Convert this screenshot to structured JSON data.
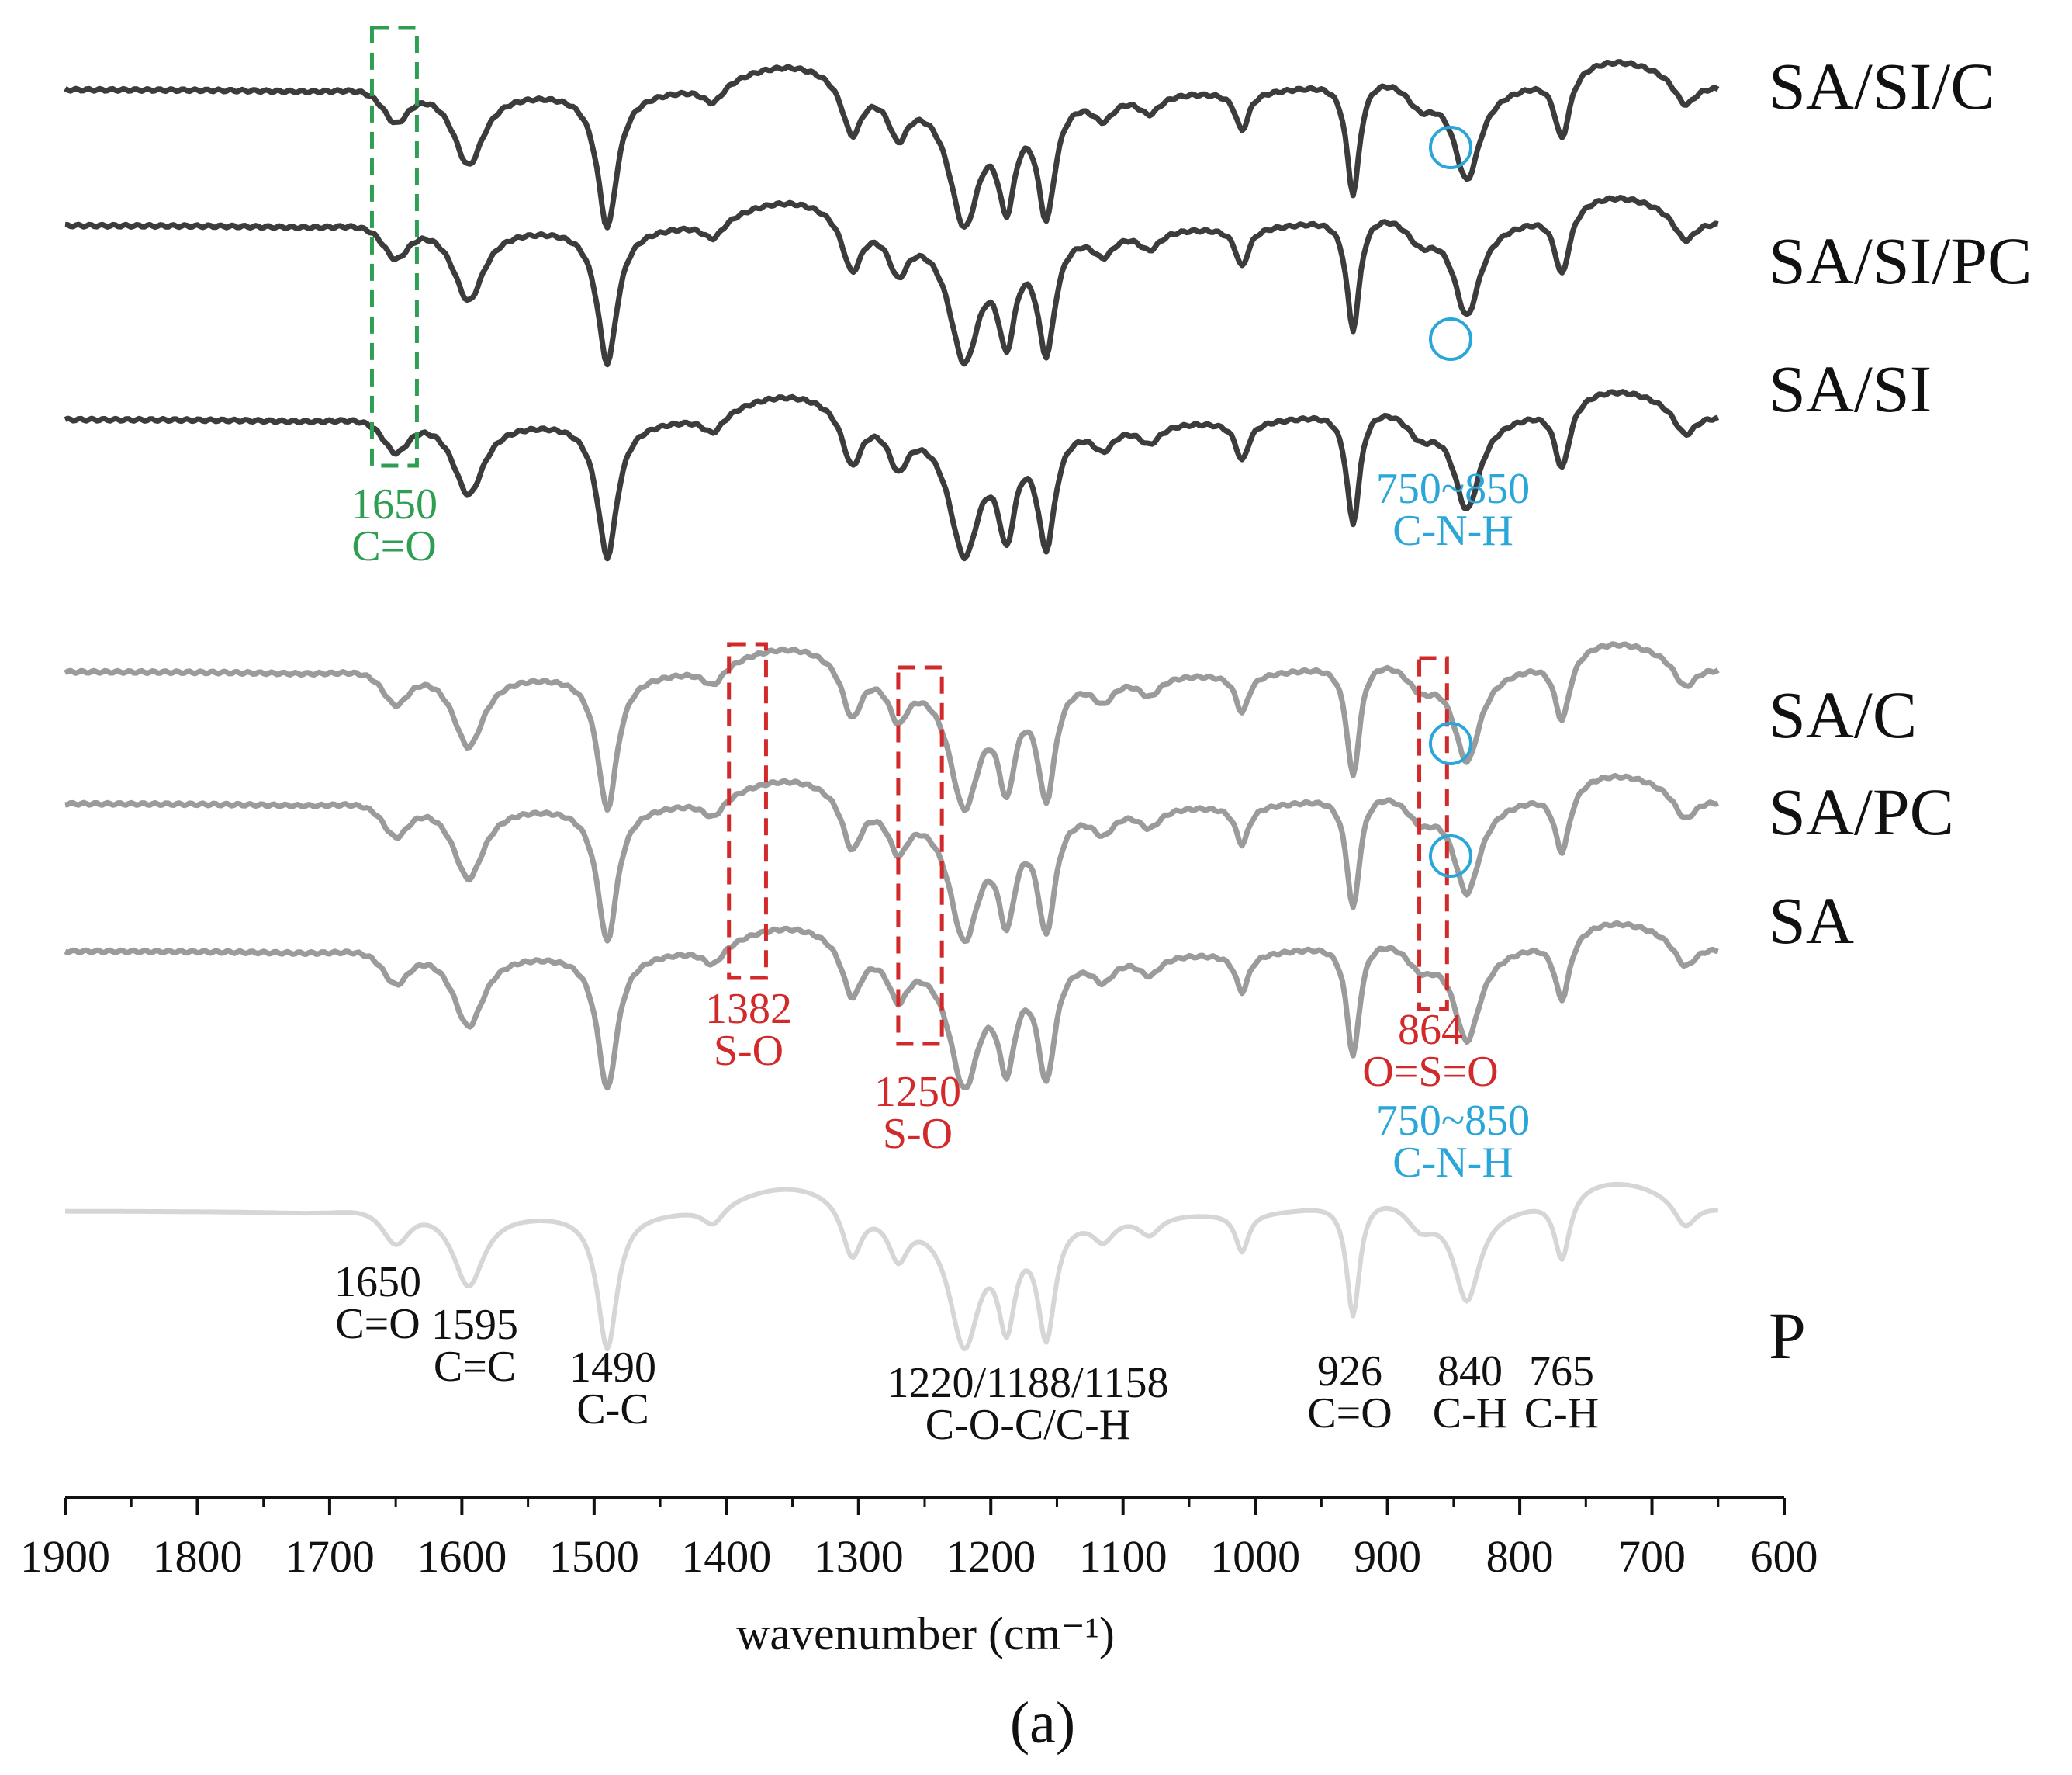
{
  "chart_data": {
    "type": "line",
    "title": "",
    "panel_label": "(a)",
    "xlabel": "wavenumber (cm⁻¹)",
    "ylabel": "",
    "xlim": [
      1900,
      600
    ],
    "x_ticks": [
      1900,
      1800,
      1700,
      1600,
      1500,
      1400,
      1300,
      1200,
      1100,
      1000,
      900,
      800,
      700,
      600
    ],
    "grid": false,
    "legend": "right-inline",
    "colors": {
      "dark": "#3c3c3c",
      "medium": "#9b9b9b",
      "light": "#d6d6d6",
      "green": "#2e9e53",
      "red": "#d22a2a",
      "blue": "#2aa7d8",
      "black": "#111111"
    },
    "series": [
      {
        "name": "SA/SI/C",
        "tone": "dark",
        "offset": 0
      },
      {
        "name": "SA/SI/PC",
        "tone": "dark",
        "offset": 1
      },
      {
        "name": "SA/SI",
        "tone": "dark",
        "offset": 2
      },
      {
        "name": "SA/C",
        "tone": "medium",
        "offset": 3
      },
      {
        "name": "SA/PC",
        "tone": "medium",
        "offset": 4
      },
      {
        "name": "SA",
        "tone": "medium",
        "offset": 5
      },
      {
        "name": "P",
        "tone": "light",
        "offset": 6
      }
    ],
    "absorption_bands": [
      {
        "wavenumber": 1650,
        "assignment": "C=O"
      },
      {
        "wavenumber": 1595,
        "assignment": "C=C"
      },
      {
        "wavenumber": 1490,
        "assignment": "C-C"
      },
      {
        "wavenumber": 1382,
        "assignment": "S-O"
      },
      {
        "wavenumber": 1250,
        "assignment": "S-O"
      },
      {
        "wavenumber": 1220,
        "assignment": "C-O-C/C-H"
      },
      {
        "wavenumber": 1188,
        "assignment": "C-O-C/C-H"
      },
      {
        "wavenumber": 1158,
        "assignment": "C-O-C/C-H"
      },
      {
        "wavenumber": 926,
        "assignment": "C=O"
      },
      {
        "wavenumber": 864,
        "assignment": "O=S=O"
      },
      {
        "wavenumber": 840,
        "assignment": "C-H"
      },
      {
        "wavenumber": 765,
        "assignment": "C-H"
      },
      {
        "wavenumber": "750~850",
        "assignment": "C-N-H"
      }
    ],
    "annotations": {
      "green_1650": {
        "lines": [
          "1650",
          "C=O"
        ],
        "color": "green"
      },
      "cnh_top": {
        "lines": [
          "750~850",
          "C-N-H"
        ],
        "color": "blue"
      },
      "so_1382": {
        "lines": [
          "1382",
          "S-O"
        ],
        "color": "red"
      },
      "so_1250": {
        "lines": [
          "1250",
          "S-O"
        ],
        "color": "red"
      },
      "oso_864": {
        "lines": [
          "864",
          "O=S=O"
        ],
        "color": "red"
      },
      "cnh_mid": {
        "lines": [
          "750~850",
          "C-N-H"
        ],
        "color": "blue"
      },
      "p_1650": {
        "lines": [
          "1650",
          "C=O"
        ],
        "color": "black"
      },
      "p_1595": {
        "lines": [
          "1595",
          "C=C"
        ],
        "color": "black"
      },
      "p_1490": {
        "lines": [
          "1490",
          "C-C"
        ],
        "color": "black"
      },
      "p_1220": {
        "lines": [
          "1220/1188/1158",
          "C-O-C/C-H"
        ],
        "color": "black"
      },
      "p_926": {
        "lines": [
          "926",
          "C=O"
        ],
        "color": "black"
      },
      "p_840": {
        "lines": [
          "840",
          "C-H"
        ],
        "color": "black"
      },
      "p_765": {
        "lines": [
          "765",
          "C-H"
        ],
        "color": "black"
      }
    }
  }
}
